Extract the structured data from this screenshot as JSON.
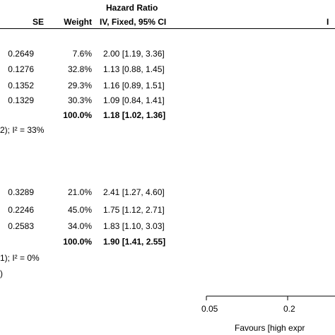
{
  "header": {
    "effect_title": "Hazard Ratio",
    "col_se": "SE",
    "col_weight": "Weight",
    "col_effect": "IV, Fixed, 95% CI",
    "right_partial": "I"
  },
  "groups": [
    {
      "rows": [
        {
          "se": "0.2649",
          "weight": "7.6%",
          "ci": "2.00 [1.19, 3.36]"
        },
        {
          "se": "0.1276",
          "weight": "32.8%",
          "ci": "1.13 [0.88, 1.45]"
        },
        {
          "se": "0.1352",
          "weight": "29.3%",
          "ci": "1.16 [0.89, 1.51]"
        },
        {
          "se": "0.1329",
          "weight": "30.3%",
          "ci": "1.09 [0.84, 1.41]"
        }
      ],
      "total_weight": "100.0%",
      "total_ci": "1.18 [1.02, 1.36]",
      "heterogeneity": "2); I² = 33%"
    },
    {
      "rows": [
        {
          "se": "0.3289",
          "weight": "21.0%",
          "ci": "2.41 [1.27, 4.60]"
        },
        {
          "se": "0.2246",
          "weight": "45.0%",
          "ci": "1.75 [1.12, 2.71]"
        },
        {
          "se": "0.2583",
          "weight": "34.0%",
          "ci": "1.83 [1.10, 3.03]"
        }
      ],
      "total_weight": "100.0%",
      "total_ci": "1.90 [1.41, 2.55]",
      "heterogeneity": "1); I² = 0%",
      "extra_line": ")"
    }
  ],
  "axis": {
    "tick_labels": [
      "0.05",
      "0.2"
    ],
    "favours_label": "Favours [high expr"
  },
  "chart_data": {
    "type": "table",
    "title": "Hazard Ratio",
    "columns": [
      "SE",
      "Weight",
      "IV, Fixed, 95% CI"
    ],
    "x_scale": "log",
    "x_ticks": [
      0.05,
      0.2
    ],
    "groups": [
      {
        "studies": [
          {
            "se": 0.2649,
            "weight": 7.6,
            "hr": 2.0,
            "ci_low": 1.19,
            "ci_high": 3.36
          },
          {
            "se": 0.1276,
            "weight": 32.8,
            "hr": 1.13,
            "ci_low": 0.88,
            "ci_high": 1.45
          },
          {
            "se": 0.1352,
            "weight": 29.3,
            "hr": 1.16,
            "ci_low": 0.89,
            "ci_high": 1.51
          },
          {
            "se": 0.1329,
            "weight": 30.3,
            "hr": 1.09,
            "ci_low": 0.84,
            "ci_high": 1.41
          }
        ],
        "total": {
          "weight": 100.0,
          "hr": 1.18,
          "ci_low": 1.02,
          "ci_high": 1.36
        },
        "i2": 33
      },
      {
        "studies": [
          {
            "se": 0.3289,
            "weight": 21.0,
            "hr": 2.41,
            "ci_low": 1.27,
            "ci_high": 4.6
          },
          {
            "se": 0.2246,
            "weight": 45.0,
            "hr": 1.75,
            "ci_low": 1.12,
            "ci_high": 2.71
          },
          {
            "se": 0.2583,
            "weight": 34.0,
            "hr": 1.83,
            "ci_low": 1.1,
            "ci_high": 3.03
          }
        ],
        "total": {
          "weight": 100.0,
          "hr": 1.9,
          "ci_low": 1.41,
          "ci_high": 2.55
        },
        "i2": 0
      }
    ]
  }
}
